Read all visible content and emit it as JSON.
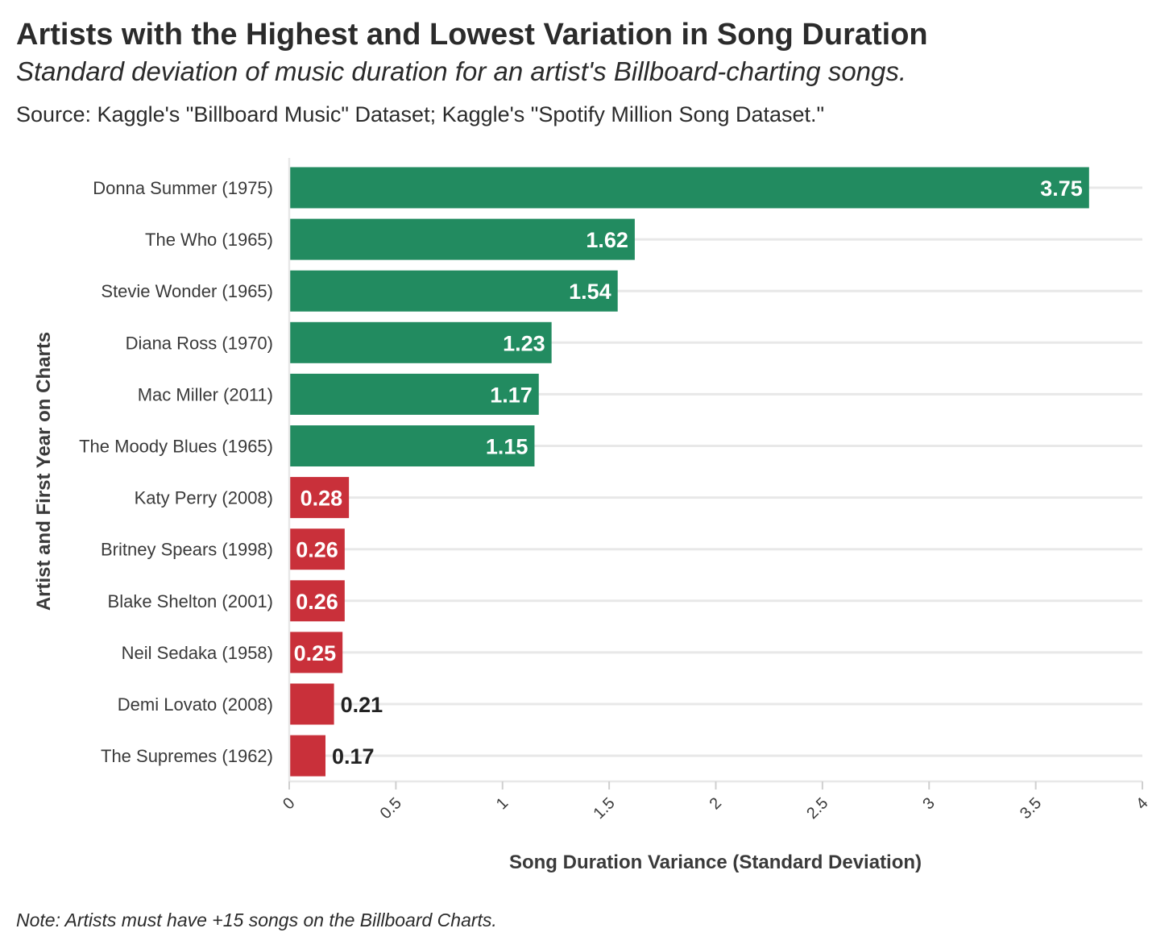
{
  "chart_data": {
    "type": "bar",
    "orientation": "horizontal",
    "title": "Artists with the Highest and Lowest Variation in Song Duration",
    "subtitle": "Standard deviation of music duration for an artist's Billboard-charting songs.",
    "source": "Source: Kaggle's \"Billboard Music\" Dataset; Kaggle's \"Spotify Million Song Dataset.\"",
    "note": "Note: Artists must have +15 songs on the Billboard Charts.",
    "xlabel": "Song Duration Variance (Standard Deviation)",
    "ylabel": "Artist and First Year on Charts",
    "xlim": [
      0,
      4
    ],
    "xticks": [
      "0",
      "0.5",
      "1",
      "1.5",
      "2",
      "2.5",
      "3",
      "3.5",
      "4"
    ],
    "grid": true,
    "categories": [
      "Donna Summer (1975)",
      "The Who (1965)",
      "Stevie Wonder (1965)",
      "Diana Ross (1970)",
      "Mac Miller (2011)",
      "The Moody Blues (1965)",
      "Katy Perry (2008)",
      "Britney Spears (1998)",
      "Blake Shelton (2001)",
      "Neil Sedaka (1958)",
      "Demi Lovato (2008)",
      "The Supremes (1962)"
    ],
    "values": [
      3.75,
      1.62,
      1.54,
      1.23,
      1.17,
      1.15,
      0.28,
      0.26,
      0.26,
      0.25,
      0.21,
      0.17
    ],
    "data_labels": [
      "3.75",
      "1.62",
      "1.54",
      "1.23",
      "1.17",
      "1.15",
      "0.28",
      "0.26",
      "0.26",
      "0.25",
      "0.21",
      "0.17"
    ],
    "groups": [
      "highest",
      "highest",
      "highest",
      "highest",
      "highest",
      "highest",
      "lowest",
      "lowest",
      "lowest",
      "lowest",
      "lowest",
      "lowest"
    ],
    "colors": {
      "highest": "#228b60",
      "lowest": "#c9303a",
      "grid": "#e8e8e8"
    }
  }
}
